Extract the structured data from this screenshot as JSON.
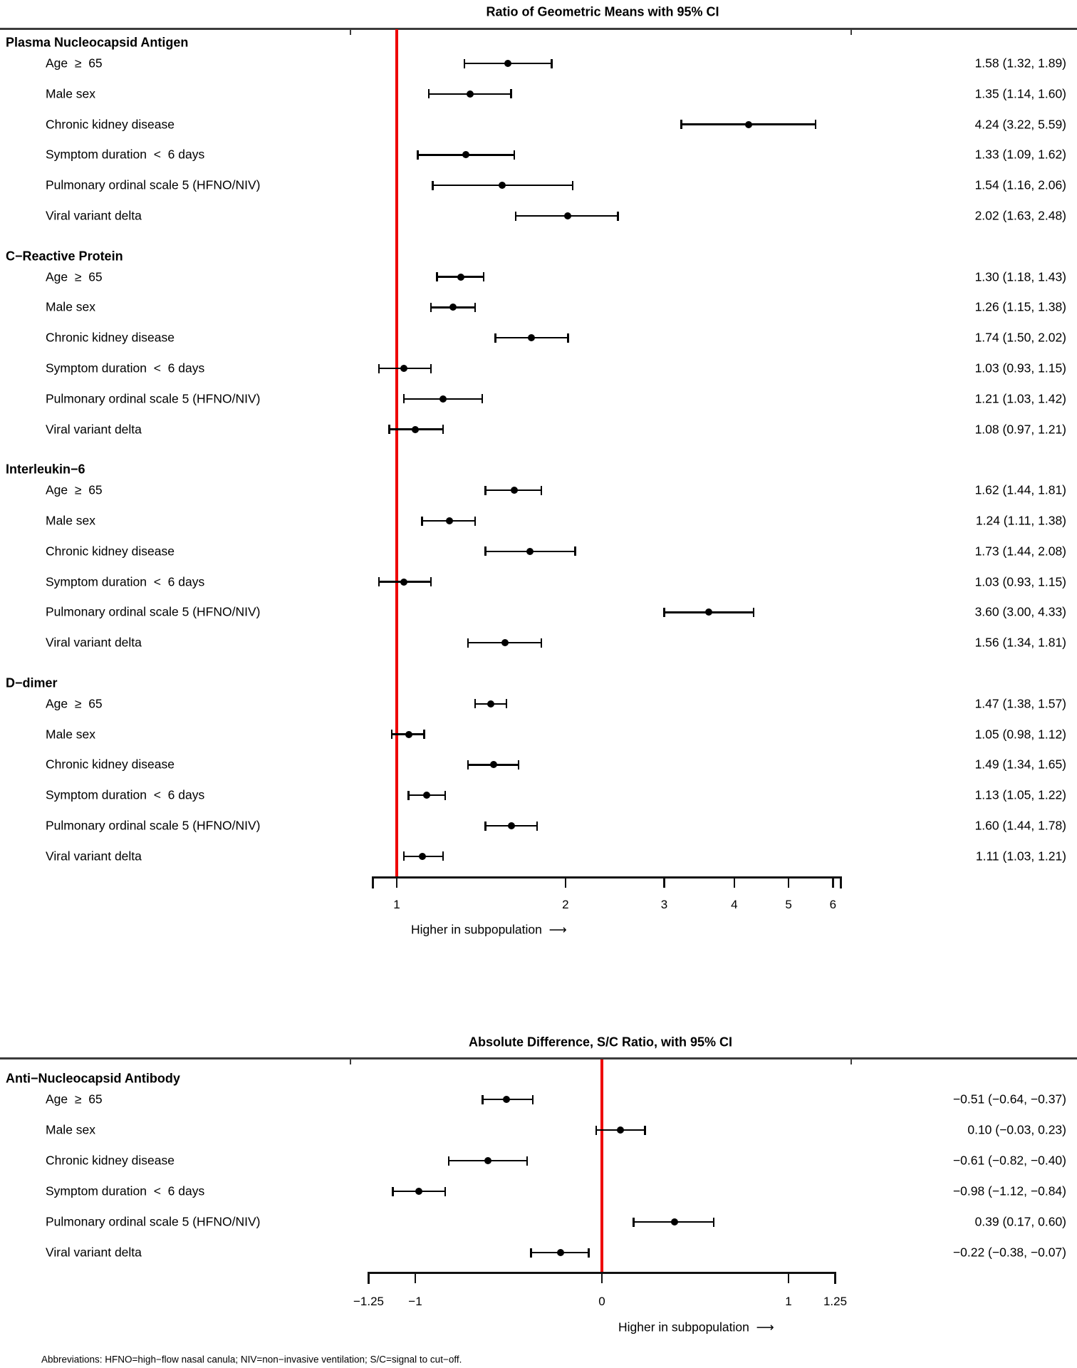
{
  "chart_data": {
    "type": "forest",
    "panels": [
      {
        "title": "Ratio of Geometric Means with 95% CI",
        "axis": {
          "scale": "log",
          "ref": 1,
          "range": [
            0.9,
            6.2
          ],
          "ticks": [
            {
              "v": 1,
              "label": "1"
            },
            {
              "v": 2,
              "label": "2"
            },
            {
              "v": 3,
              "label": "3"
            },
            {
              "v": 4,
              "label": "4"
            },
            {
              "v": 5,
              "label": "5"
            },
            {
              "v": 6,
              "label": "6"
            }
          ],
          "label": "Higher in subpopulation  ⟶"
        },
        "groups": [
          {
            "name": "Plasma Nucleocapsid Antigen",
            "rows": [
              {
                "label": "Age  ≥  65",
                "est": 1.58,
                "lo": 1.32,
                "hi": 1.89,
                "text": "1.58 (1.32, 1.89)"
              },
              {
                "label": "Male sex",
                "est": 1.35,
                "lo": 1.14,
                "hi": 1.6,
                "text": "1.35 (1.14, 1.60)"
              },
              {
                "label": "Chronic kidney disease",
                "est": 4.24,
                "lo": 3.22,
                "hi": 5.59,
                "text": "4.24 (3.22, 5.59)"
              },
              {
                "label": "Symptom duration  <  6 days",
                "est": 1.33,
                "lo": 1.09,
                "hi": 1.62,
                "text": "1.33 (1.09, 1.62)"
              },
              {
                "label": "Pulmonary ordinal scale 5 (HFNO/NIV)",
                "est": 1.54,
                "lo": 1.16,
                "hi": 2.06,
                "text": "1.54 (1.16, 2.06)"
              },
              {
                "label": "Viral variant delta",
                "est": 2.02,
                "lo": 1.63,
                "hi": 2.48,
                "text": "2.02 (1.63, 2.48)"
              }
            ]
          },
          {
            "name": "C−Reactive Protein",
            "rows": [
              {
                "label": "Age  ≥  65",
                "est": 1.3,
                "lo": 1.18,
                "hi": 1.43,
                "text": "1.30 (1.18, 1.43)"
              },
              {
                "label": "Male sex",
                "est": 1.26,
                "lo": 1.15,
                "hi": 1.38,
                "text": "1.26 (1.15, 1.38)"
              },
              {
                "label": "Chronic kidney disease",
                "est": 1.74,
                "lo": 1.5,
                "hi": 2.02,
                "text": "1.74 (1.50, 2.02)"
              },
              {
                "label": "Symptom duration  <  6 days",
                "est": 1.03,
                "lo": 0.93,
                "hi": 1.15,
                "text": "1.03 (0.93, 1.15)"
              },
              {
                "label": "Pulmonary ordinal scale 5 (HFNO/NIV)",
                "est": 1.21,
                "lo": 1.03,
                "hi": 1.42,
                "text": "1.21 (1.03, 1.42)"
              },
              {
                "label": "Viral variant delta",
                "est": 1.08,
                "lo": 0.97,
                "hi": 1.21,
                "text": "1.08 (0.97, 1.21)"
              }
            ]
          },
          {
            "name": "Interleukin−6",
            "rows": [
              {
                "label": "Age  ≥  65",
                "est": 1.62,
                "lo": 1.44,
                "hi": 1.81,
                "text": "1.62 (1.44, 1.81)"
              },
              {
                "label": "Male sex",
                "est": 1.24,
                "lo": 1.11,
                "hi": 1.38,
                "text": "1.24 (1.11, 1.38)"
              },
              {
                "label": "Chronic kidney disease",
                "est": 1.73,
                "lo": 1.44,
                "hi": 2.08,
                "text": "1.73 (1.44, 2.08)"
              },
              {
                "label": "Symptom duration  <  6 days",
                "est": 1.03,
                "lo": 0.93,
                "hi": 1.15,
                "text": "1.03 (0.93, 1.15)"
              },
              {
                "label": "Pulmonary ordinal scale 5 (HFNO/NIV)",
                "est": 3.6,
                "lo": 3.0,
                "hi": 4.33,
                "text": "3.60 (3.00, 4.33)"
              },
              {
                "label": "Viral variant delta",
                "est": 1.56,
                "lo": 1.34,
                "hi": 1.81,
                "text": "1.56 (1.34, 1.81)"
              }
            ]
          },
          {
            "name": "D−dimer",
            "rows": [
              {
                "label": "Age  ≥  65",
                "est": 1.47,
                "lo": 1.38,
                "hi": 1.57,
                "text": "1.47 (1.38, 1.57)"
              },
              {
                "label": "Male sex",
                "est": 1.05,
                "lo": 0.98,
                "hi": 1.12,
                "text": "1.05 (0.98, 1.12)"
              },
              {
                "label": "Chronic kidney disease",
                "est": 1.49,
                "lo": 1.34,
                "hi": 1.65,
                "text": "1.49 (1.34, 1.65)"
              },
              {
                "label": "Symptom duration  <  6 days",
                "est": 1.13,
                "lo": 1.05,
                "hi": 1.22,
                "text": "1.13 (1.05, 1.22)"
              },
              {
                "label": "Pulmonary ordinal scale 5 (HFNO/NIV)",
                "est": 1.6,
                "lo": 1.44,
                "hi": 1.78,
                "text": "1.60 (1.44, 1.78)"
              },
              {
                "label": "Viral variant delta",
                "est": 1.11,
                "lo": 1.03,
                "hi": 1.21,
                "text": "1.11 (1.03, 1.21)"
              }
            ]
          }
        ]
      },
      {
        "title": "Absolute Difference, S/C Ratio, with 95% CI",
        "axis": {
          "scale": "linear",
          "ref": 0,
          "range": [
            -1.25,
            1.25
          ],
          "ticks": [
            {
              "v": -1.25,
              "label": "−1.25"
            },
            {
              "v": -1,
              "label": "−1"
            },
            {
              "v": 0,
              "label": "0"
            },
            {
              "v": 1,
              "label": "1"
            },
            {
              "v": 1.25,
              "label": "1.25"
            }
          ],
          "label": "Higher in subpopulation  ⟶"
        },
        "groups": [
          {
            "name": "Anti−Nucleocapsid Antibody",
            "rows": [
              {
                "label": "Age  ≥  65",
                "est": -0.51,
                "lo": -0.64,
                "hi": -0.37,
                "text": "−0.51 (−0.64, −0.37)"
              },
              {
                "label": "Male sex",
                "est": 0.1,
                "lo": -0.03,
                "hi": 0.23,
                "text": "0.10 (−0.03, 0.23)"
              },
              {
                "label": "Chronic kidney disease",
                "est": -0.61,
                "lo": -0.82,
                "hi": -0.4,
                "text": "−0.61 (−0.82, −0.40)"
              },
              {
                "label": "Symptom duration  <  6 days",
                "est": -0.98,
                "lo": -1.12,
                "hi": -0.84,
                "text": "−0.98 (−1.12, −0.84)"
              },
              {
                "label": "Pulmonary ordinal scale 5 (HFNO/NIV)",
                "est": 0.39,
                "lo": 0.17,
                "hi": 0.6,
                "text": "0.39 (0.17, 0.60)"
              },
              {
                "label": "Viral variant delta",
                "est": -0.22,
                "lo": -0.38,
                "hi": -0.07,
                "text": "−0.22 (−0.38, −0.07)"
              }
            ]
          }
        ]
      }
    ],
    "footer": "Abbreviations: HFNO=high−flow nasal canula; NIV=non−invasive ventilation; S/C=signal to cut−off.",
    "colors": {
      "reference_line": "#ee0000",
      "axis": "#111111",
      "separator": "#3c3c3c",
      "text": "#000000"
    }
  }
}
